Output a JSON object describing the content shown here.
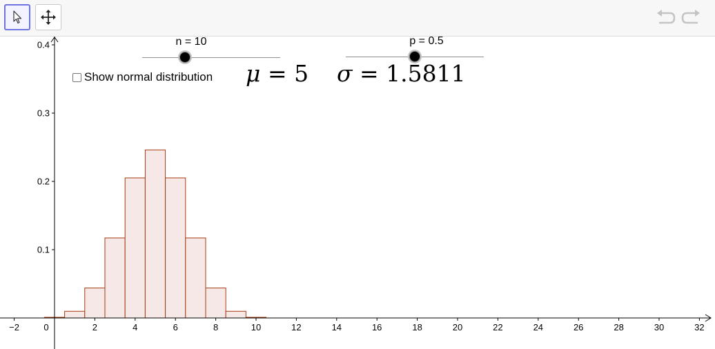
{
  "toolbar": {
    "tools": [
      {
        "name": "move-tool",
        "icon": "arrow-cursor-icon",
        "selected": true
      },
      {
        "name": "move-graphics-view",
        "icon": "four-way-arrows-icon",
        "selected": false
      }
    ],
    "undo_icon": "undo-icon",
    "redo_icon": "redo-icon"
  },
  "sliders": {
    "n": {
      "label": "n = 10",
      "value": 10,
      "min": 1,
      "max": 30
    },
    "p": {
      "label": "p = 0.5",
      "value": 0.5,
      "min": 0,
      "max": 1
    }
  },
  "checkbox": {
    "label": "Show normal distribution",
    "checked": false
  },
  "formulas": {
    "mu": {
      "symbol": "μ",
      "value": "5"
    },
    "sigma": {
      "symbol": "σ",
      "value": "1.5811"
    }
  },
  "chart_data": {
    "type": "bar",
    "x": [
      0,
      1,
      2,
      3,
      4,
      5,
      6,
      7,
      8,
      9,
      10
    ],
    "values": [
      0.001,
      0.0098,
      0.0439,
      0.1172,
      0.2051,
      0.2461,
      0.2051,
      0.1172,
      0.0439,
      0.0098,
      0.001
    ],
    "xlim": [
      -2.5,
      32.3
    ],
    "ylim": [
      0,
      0.4
    ],
    "xticks": [
      -2,
      0,
      2,
      4,
      6,
      8,
      10,
      12,
      14,
      16,
      18,
      20,
      22,
      24,
      26,
      28,
      30,
      32
    ],
    "xtick_labels": [
      "−2",
      "0",
      "2",
      "4",
      "6",
      "8",
      "10",
      "12",
      "14",
      "16",
      "18",
      "20",
      "22",
      "24",
      "26",
      "28",
      "30",
      "32"
    ],
    "yticks": [
      0.1,
      0.2,
      0.3,
      0.4
    ],
    "ytick_labels": [
      "0.1",
      "0.2",
      "0.3",
      "0.4"
    ],
    "bar_fill": "#f5e8e6",
    "bar_stroke": "#a33a0f",
    "grid": false
  }
}
